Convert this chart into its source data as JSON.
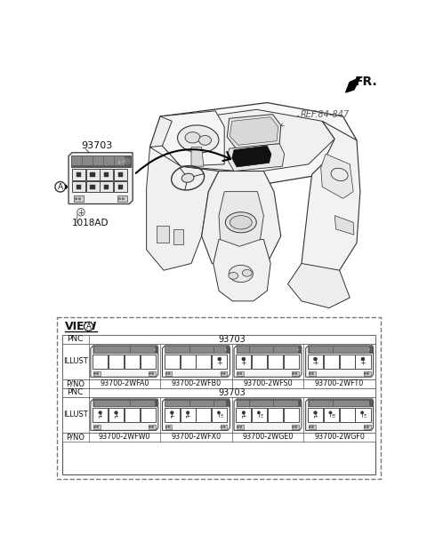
{
  "fr_label": "FR.",
  "ref_label": "REF.84-847",
  "part_93703": "93703",
  "part_1018AD": "1018AD",
  "view_label": "VIEW",
  "row1_pnc": "93703",
  "row2_pnc": "93703",
  "row1_parts": [
    "93700-2WFA0",
    "93700-2WFB0",
    "93700-2WFS0",
    "93700-2WFT0"
  ],
  "row2_parts": [
    "93700-2WFW0",
    "93700-2WFX0",
    "93700-2WGE0",
    "93700-2WGF0"
  ],
  "bg_color": "#ffffff",
  "text_color": "#111111",
  "line_color": "#333333",
  "dashed_color": "#777777"
}
